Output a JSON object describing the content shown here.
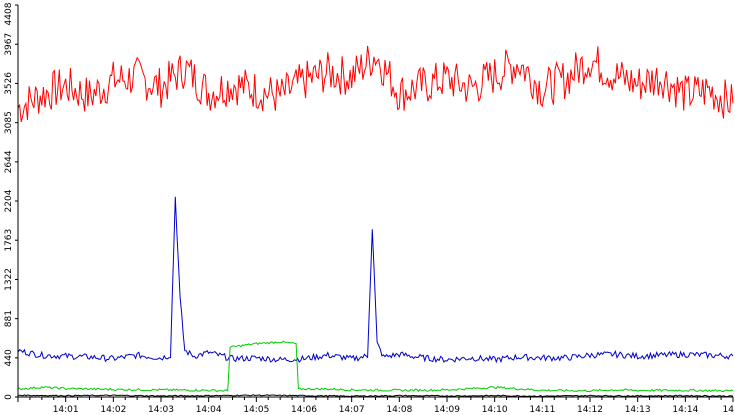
{
  "chart_data": {
    "type": "line",
    "title": "",
    "xlabel": "",
    "ylabel": "",
    "ylim": [
      0,
      4408
    ],
    "xlim": [
      "14:00:00",
      "14:15:00"
    ],
    "y_ticks": [
      "0",
      "440",
      "881",
      "1322",
      "1763",
      "2204",
      "2644",
      "3085",
      "3526",
      "3967",
      "4408"
    ],
    "x_ticks": [
      {
        "label": "14:01",
        "t": "14:01"
      },
      {
        "label": "14:02",
        "t": "14:02"
      },
      {
        "label": "14:03",
        "t": "14:03"
      },
      {
        "label": "14:04",
        "t": "14:04"
      },
      {
        "label": "14:05",
        "t": "14:05"
      },
      {
        "label": "14:06",
        "t": "14:06"
      },
      {
        "label": "14:07",
        "t": "14:07"
      },
      {
        "label": "14:08",
        "t": "14:08"
      },
      {
        "label": "14:09",
        "t": "14:09"
      },
      {
        "label": "14:10",
        "t": "14:10"
      },
      {
        "label": "14:11",
        "t": "14:11"
      },
      {
        "label": "14:12",
        "t": "14:12"
      },
      {
        "label": "14:13",
        "t": "14:13"
      },
      {
        "label": "14:14",
        "t": "14:14"
      },
      {
        "label": "14",
        "t": "14:15"
      }
    ],
    "grid": false,
    "series": [
      {
        "color": "#ff0000",
        "x": [
          "14:00:00",
          "14:00:30",
          "14:01:00",
          "14:01:30",
          "14:02:00",
          "14:02:30",
          "14:03:00",
          "14:03:30",
          "14:04:00",
          "14:04:30",
          "14:05:00",
          "14:05:30",
          "14:06:00",
          "14:06:30",
          "14:07:00",
          "14:07:30",
          "14:08:00",
          "14:08:30",
          "14:09:00",
          "14:09:30",
          "14:10:00",
          "14:10:30",
          "14:11:00",
          "14:11:30",
          "14:12:00",
          "14:12:30",
          "14:13:00",
          "14:13:30",
          "14:14:00",
          "14:14:30",
          "14:15:00"
        ],
        "values": [
          3250,
          3400,
          3500,
          3380,
          3560,
          3600,
          3480,
          3700,
          3420,
          3520,
          3450,
          3380,
          3550,
          3650,
          3600,
          3850,
          3420,
          3500,
          3580,
          3470,
          3620,
          3760,
          3460,
          3580,
          3800,
          3620,
          3520,
          3600,
          3400,
          3450,
          3300
        ]
      },
      {
        "color": "#0000cc",
        "x": [
          "14:00:00",
          "14:00:30",
          "14:01:00",
          "14:01:30",
          "14:02:00",
          "14:02:30",
          "14:03:00",
          "14:03:12",
          "14:03:18",
          "14:03:24",
          "14:03:30",
          "14:03:42",
          "14:04:00",
          "14:04:30",
          "14:05:00",
          "14:05:30",
          "14:06:00",
          "14:06:30",
          "14:07:00",
          "14:07:20",
          "14:07:26",
          "14:07:32",
          "14:07:40",
          "14:08:00",
          "14:08:30",
          "14:09:00",
          "14:09:30",
          "14:10:00",
          "14:10:30",
          "14:11:00",
          "14:11:30",
          "14:12:00",
          "14:12:30",
          "14:13:00",
          "14:13:30",
          "14:14:00",
          "14:14:30",
          "14:15:00"
        ],
        "values": [
          520,
          470,
          460,
          450,
          430,
          470,
          440,
          470,
          2250,
          1100,
          520,
          460,
          500,
          430,
          440,
          420,
          430,
          470,
          430,
          460,
          1900,
          600,
          450,
          480,
          440,
          420,
          440,
          420,
          450,
          440,
          440,
          470,
          480,
          460,
          470,
          480,
          470,
          460
        ]
      },
      {
        "color": "#00cc00",
        "x": [
          "14:00:00",
          "14:00:30",
          "14:01:00",
          "14:02:00",
          "14:03:00",
          "14:04:00",
          "14:04:24",
          "14:04:27",
          "14:05:00",
          "14:05:30",
          "14:05:50",
          "14:05:53",
          "14:06:30",
          "14:07:00",
          "14:08:00",
          "14:09:00",
          "14:10:00",
          "14:11:00",
          "14:12:00",
          "14:12:30",
          "14:13:00",
          "14:14:00",
          "14:15:00"
        ],
        "values": [
          90,
          110,
          95,
          85,
          80,
          75,
          70,
          560,
          600,
          620,
          600,
          90,
          90,
          80,
          75,
          80,
          110,
          75,
          70,
          80,
          75,
          75,
          70
        ]
      },
      {
        "color": "#000000",
        "x": [
          "14:00:00",
          "14:01:00",
          "14:02:00",
          "14:03:00",
          "14:04:00",
          "14:05:00",
          "14:06:00",
          "14:07:00",
          "14:08:00",
          "14:09:00",
          "14:10:00",
          "14:11:00",
          "14:12:00",
          "14:13:00",
          "14:14:00",
          "14:15:00"
        ],
        "values": [
          20,
          15,
          18,
          12,
          15,
          20,
          15,
          10,
          15,
          12,
          15,
          10,
          15,
          12,
          15,
          10
        ]
      }
    ]
  }
}
